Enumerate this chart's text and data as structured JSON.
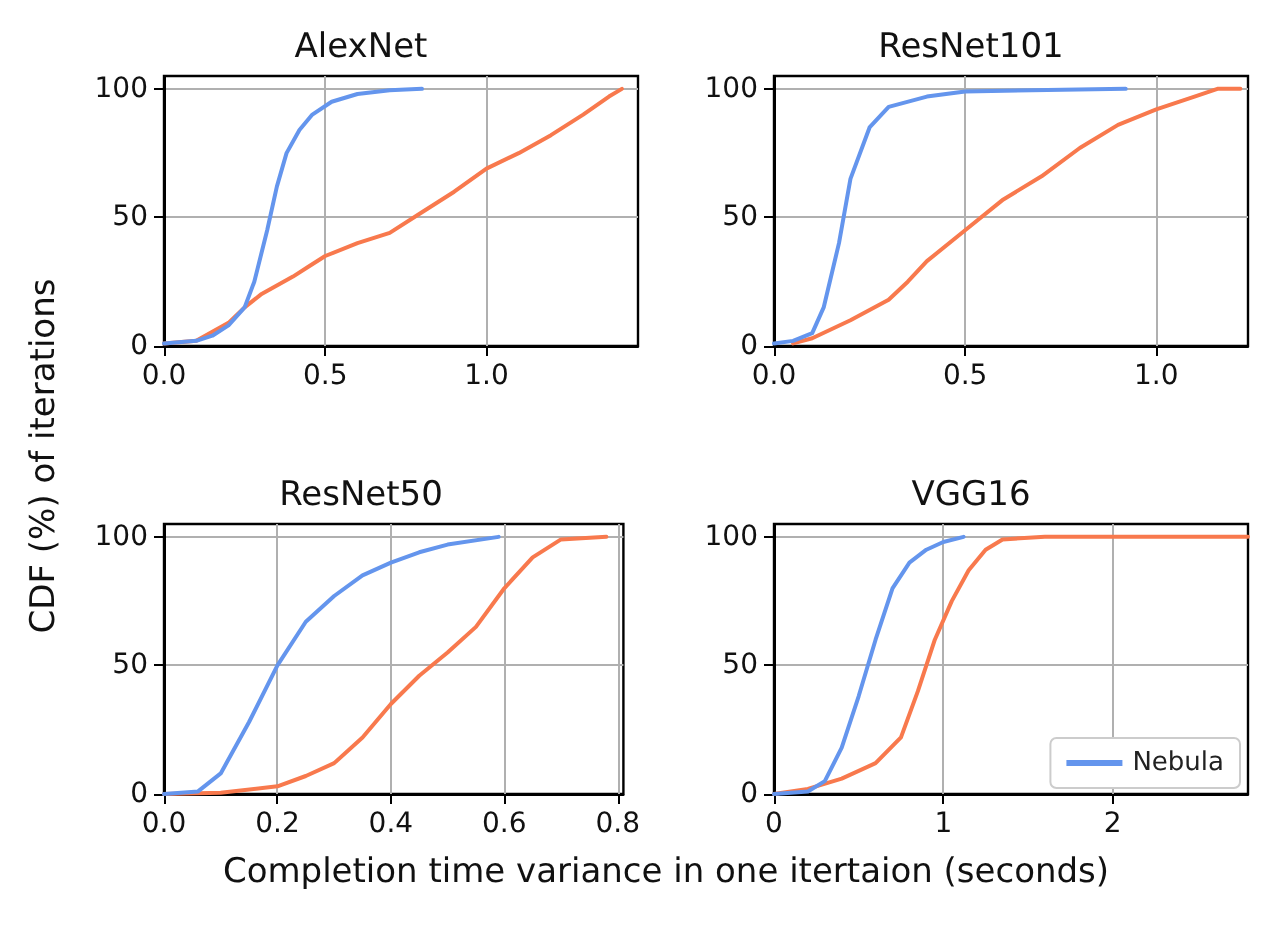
{
  "chart_data": [
    {
      "type": "line",
      "title": "AlexNet",
      "ylabel": "CDF (%) of iterations",
      "xlim": [
        0,
        1.47
      ],
      "xticks": [
        {
          "value": 0,
          "label": "0.0"
        },
        {
          "value": 0.5,
          "label": "0.5"
        },
        {
          "value": 1,
          "label": "1.0"
        }
      ],
      "ylim": [
        0,
        105
      ],
      "yticks": [
        0,
        50,
        100
      ],
      "grid": true,
      "legend": false,
      "marker": "none",
      "line_style": "solid",
      "series": [
        {
          "color": "#f8794d",
          "x": [
            0,
            0.1,
            0.2,
            0.25,
            0.3,
            0.4,
            0.45,
            0.5,
            0.6,
            0.7,
            0.8,
            0.9,
            1.0,
            1.1,
            1.2,
            1.3,
            1.38,
            1.42
          ],
          "values": [
            1,
            2,
            9,
            15,
            20,
            27,
            31,
            35,
            40,
            44,
            52,
            60,
            69,
            75,
            82,
            90,
            97,
            100
          ]
        },
        {
          "color": "#6495ed",
          "x": [
            0,
            0.1,
            0.15,
            0.2,
            0.25,
            0.28,
            0.32,
            0.35,
            0.38,
            0.42,
            0.46,
            0.52,
            0.6,
            0.7,
            0.8
          ],
          "values": [
            1,
            2,
            4,
            8,
            15,
            25,
            45,
            62,
            75,
            84,
            90,
            95,
            98,
            99.5,
            100
          ]
        }
      ]
    },
    {
      "type": "line",
      "title": "ResNet101",
      "xlim": [
        0,
        1.24
      ],
      "xticks": [
        {
          "value": 0,
          "label": "0.0"
        },
        {
          "value": 0.5,
          "label": "0.5"
        },
        {
          "value": 1,
          "label": "1.0"
        }
      ],
      "ylim": [
        0,
        105
      ],
      "yticks": [
        0,
        50,
        100
      ],
      "grid": true,
      "legend": false,
      "marker": "none",
      "line_style": "solid",
      "series": [
        {
          "color": "#f8794d",
          "x": [
            0.05,
            0.1,
            0.2,
            0.3,
            0.35,
            0.4,
            0.5,
            0.6,
            0.7,
            0.8,
            0.9,
            1.0,
            1.1,
            1.16,
            1.22
          ],
          "values": [
            1,
            3,
            10,
            18,
            25,
            33,
            45,
            57,
            66,
            77,
            86,
            92,
            97,
            100,
            100
          ]
        },
        {
          "color": "#6495ed",
          "x": [
            0,
            0.05,
            0.1,
            0.13,
            0.17,
            0.2,
            0.25,
            0.3,
            0.4,
            0.5,
            0.92
          ],
          "values": [
            1,
            2,
            5,
            15,
            40,
            65,
            85,
            93,
            97,
            99,
            100
          ]
        }
      ]
    },
    {
      "type": "line",
      "title": "ResNet50",
      "xlabel": "Completion time variance in one itertaion (seconds)",
      "xlim": [
        0,
        0.81
      ],
      "xticks": [
        {
          "value": 0,
          "label": "0.0"
        },
        {
          "value": 0.2,
          "label": "0.2"
        },
        {
          "value": 0.4,
          "label": "0.4"
        },
        {
          "value": 0.6,
          "label": "0.6"
        },
        {
          "value": 0.8,
          "label": "0.8"
        }
      ],
      "ylim": [
        0,
        105
      ],
      "yticks": [
        0,
        50,
        100
      ],
      "grid": true,
      "legend": false,
      "marker": "none",
      "line_style": "solid",
      "series": [
        {
          "color": "#f8794d",
          "x": [
            0,
            0.1,
            0.2,
            0.25,
            0.3,
            0.35,
            0.4,
            0.45,
            0.5,
            0.55,
            0.6,
            0.65,
            0.7,
            0.78
          ],
          "values": [
            0,
            0.5,
            3,
            7,
            12,
            22,
            35,
            46,
            55,
            65,
            80,
            92,
            99,
            100
          ]
        },
        {
          "color": "#6495ed",
          "x": [
            0,
            0.06,
            0.1,
            0.15,
            0.2,
            0.25,
            0.3,
            0.35,
            0.4,
            0.45,
            0.5,
            0.59
          ],
          "values": [
            0,
            1,
            8,
            28,
            50,
            67,
            77,
            85,
            90,
            94,
            97,
            100
          ]
        }
      ]
    },
    {
      "type": "line",
      "title": "VGG16",
      "xlim": [
        0,
        2.8
      ],
      "xticks": [
        0,
        1,
        2
      ],
      "ylim": [
        0,
        105
      ],
      "yticks": [
        0,
        50,
        100
      ],
      "grid": true,
      "legend": "bottom right",
      "marker": "none",
      "line_style": "solid",
      "series": [
        {
          "color": "#f8794d",
          "x": [
            0,
            0.2,
            0.4,
            0.6,
            0.75,
            0.85,
            0.95,
            1.05,
            1.15,
            1.25,
            1.35,
            1.6,
            2.8
          ],
          "values": [
            0,
            2,
            6,
            12,
            22,
            40,
            60,
            75,
            87,
            95,
            99,
            100,
            100
          ]
        },
        {
          "name": "Nebula",
          "color": "#6495ed",
          "x": [
            0,
            0.2,
            0.3,
            0.4,
            0.5,
            0.6,
            0.7,
            0.8,
            0.9,
            1.0,
            1.12
          ],
          "values": [
            0,
            1,
            5,
            18,
            38,
            60,
            80,
            90,
            95,
            98,
            100
          ]
        }
      ]
    }
  ]
}
